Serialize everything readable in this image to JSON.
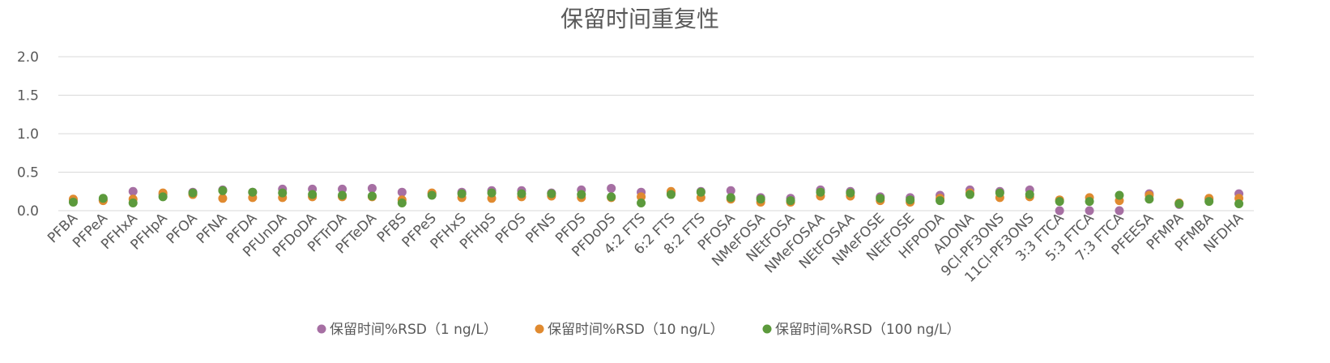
{
  "chart_data": {
    "type": "scatter",
    "title": "保留时间重复性",
    "xlabel": "",
    "ylabel": "",
    "ylim": [
      0,
      2.0
    ],
    "yticks": [
      "0.0",
      "0.5",
      "1.0",
      "1.5",
      "2.0"
    ],
    "grid": true,
    "legend_position": "bottom",
    "categories": [
      "PFBA",
      "PFPeA",
      "PFHxA",
      "PFHpA",
      "PFOA",
      "PFNA",
      "PFDA",
      "PFUnDA",
      "PFDoDA",
      "PFTrDA",
      "PFTeDA",
      "PFBS",
      "PFPeS",
      "PFHxS",
      "PFHpS",
      "PFOS",
      "PFNS",
      "PFDS",
      "PFDoDS",
      "4:2 FTS",
      "6:2 FTS",
      "8:2 FTS",
      "PFOSA",
      "NMeFOSA",
      "NEtFOSA",
      "NMeFOSAA",
      "NEtFOSAA",
      "NMeFOSE",
      "NEtFOSE",
      "HFPODA",
      "ADONA",
      "9Cl-PF3ONS",
      "11Cl-PF3ONS",
      "3:3 FTCA",
      "5:3 FTCA",
      "7:3 FTCA",
      "PFEESA",
      "PFMPA",
      "PFMBA",
      "NFDHA"
    ],
    "series": [
      {
        "name": "保留时间%RSD（1 ng/L）",
        "color": "#A66FA3",
        "values": [
          0.14,
          0.14,
          0.25,
          0.21,
          0.24,
          0.27,
          0.24,
          0.28,
          0.28,
          0.28,
          0.29,
          0.24,
          0.22,
          0.24,
          0.26,
          0.26,
          0.23,
          0.27,
          0.29,
          0.24,
          0.23,
          0.25,
          0.26,
          0.17,
          0.16,
          0.27,
          0.25,
          0.18,
          0.17,
          0.2,
          0.27,
          0.25,
          0.27,
          0.0,
          0.0,
          0.0,
          0.22,
          0.08,
          0.15,
          0.22
        ]
      },
      {
        "name": "保留时间%RSD（10 ng/L）",
        "color": "#E08A30",
        "values": [
          0.15,
          0.13,
          0.15,
          0.23,
          0.21,
          0.16,
          0.17,
          0.17,
          0.18,
          0.18,
          0.18,
          0.14,
          0.23,
          0.17,
          0.16,
          0.18,
          0.19,
          0.17,
          0.17,
          0.18,
          0.25,
          0.17,
          0.15,
          0.11,
          0.11,
          0.19,
          0.19,
          0.13,
          0.11,
          0.16,
          0.23,
          0.17,
          0.18,
          0.14,
          0.17,
          0.13,
          0.2,
          0.1,
          0.16,
          0.16
        ]
      },
      {
        "name": "保留时间%RSD（100 ng/L）",
        "color": "#5C9A3C",
        "values": [
          0.11,
          0.16,
          0.1,
          0.18,
          0.23,
          0.26,
          0.24,
          0.23,
          0.21,
          0.2,
          0.19,
          0.1,
          0.2,
          0.22,
          0.23,
          0.22,
          0.22,
          0.21,
          0.18,
          0.1,
          0.21,
          0.24,
          0.17,
          0.15,
          0.13,
          0.24,
          0.23,
          0.16,
          0.14,
          0.13,
          0.21,
          0.23,
          0.21,
          0.12,
          0.12,
          0.2,
          0.15,
          0.09,
          0.12,
          0.09
        ]
      }
    ]
  }
}
